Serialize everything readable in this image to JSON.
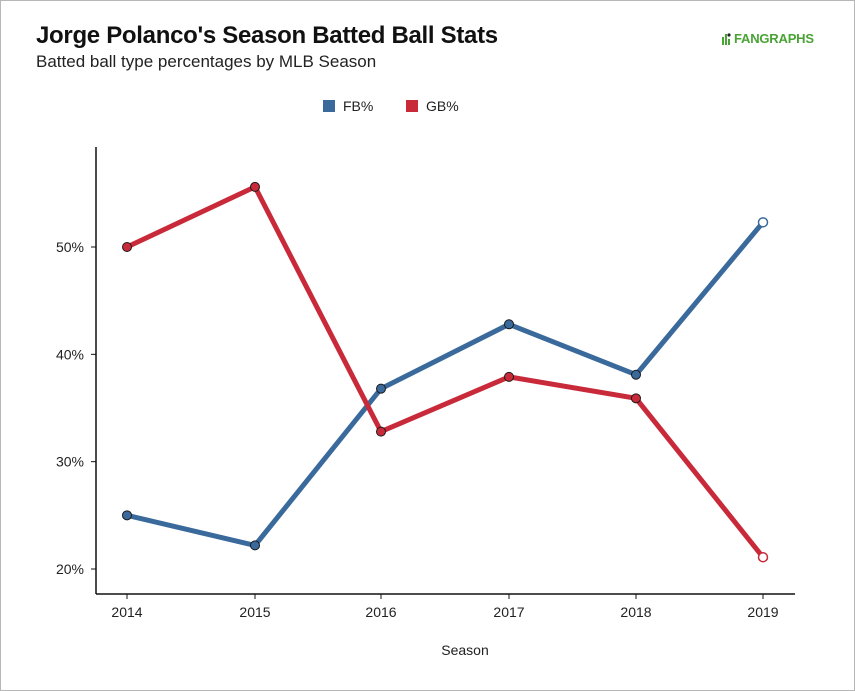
{
  "header": {
    "title": "Jorge Polanco's Season Batted Ball Stats",
    "subtitle": "Batted ball type percentages by MLB Season",
    "logo_text": "FANGRAPHS"
  },
  "colors": {
    "fb": "#3a6a9c",
    "gb": "#c92a3a",
    "axis": "#111111",
    "logo": "#4aa335"
  },
  "chart_data": {
    "type": "line",
    "title": "Jorge Polanco's Season Batted Ball Stats",
    "subtitle": "Batted ball type percentages by MLB Season",
    "xlabel": "Season",
    "ylabel": "",
    "categories": [
      "2014",
      "2015",
      "2016",
      "2017",
      "2018",
      "2019"
    ],
    "y_ticks": [
      20,
      30,
      40,
      50
    ],
    "y_tick_labels": [
      "20%",
      "30%",
      "40%",
      "50%"
    ],
    "ylim": [
      19,
      60
    ],
    "grid": false,
    "legend_position": "top-center",
    "series": [
      {
        "name": "FB%",
        "color": "#3a6a9c",
        "values": [
          25.0,
          22.2,
          36.8,
          42.8,
          38.1,
          52.3
        ],
        "last_point_hollow": true
      },
      {
        "name": "GB%",
        "color": "#c92a3a",
        "values": [
          50.0,
          55.6,
          32.8,
          37.9,
          35.9,
          21.1
        ],
        "last_point_hollow": true
      }
    ]
  }
}
